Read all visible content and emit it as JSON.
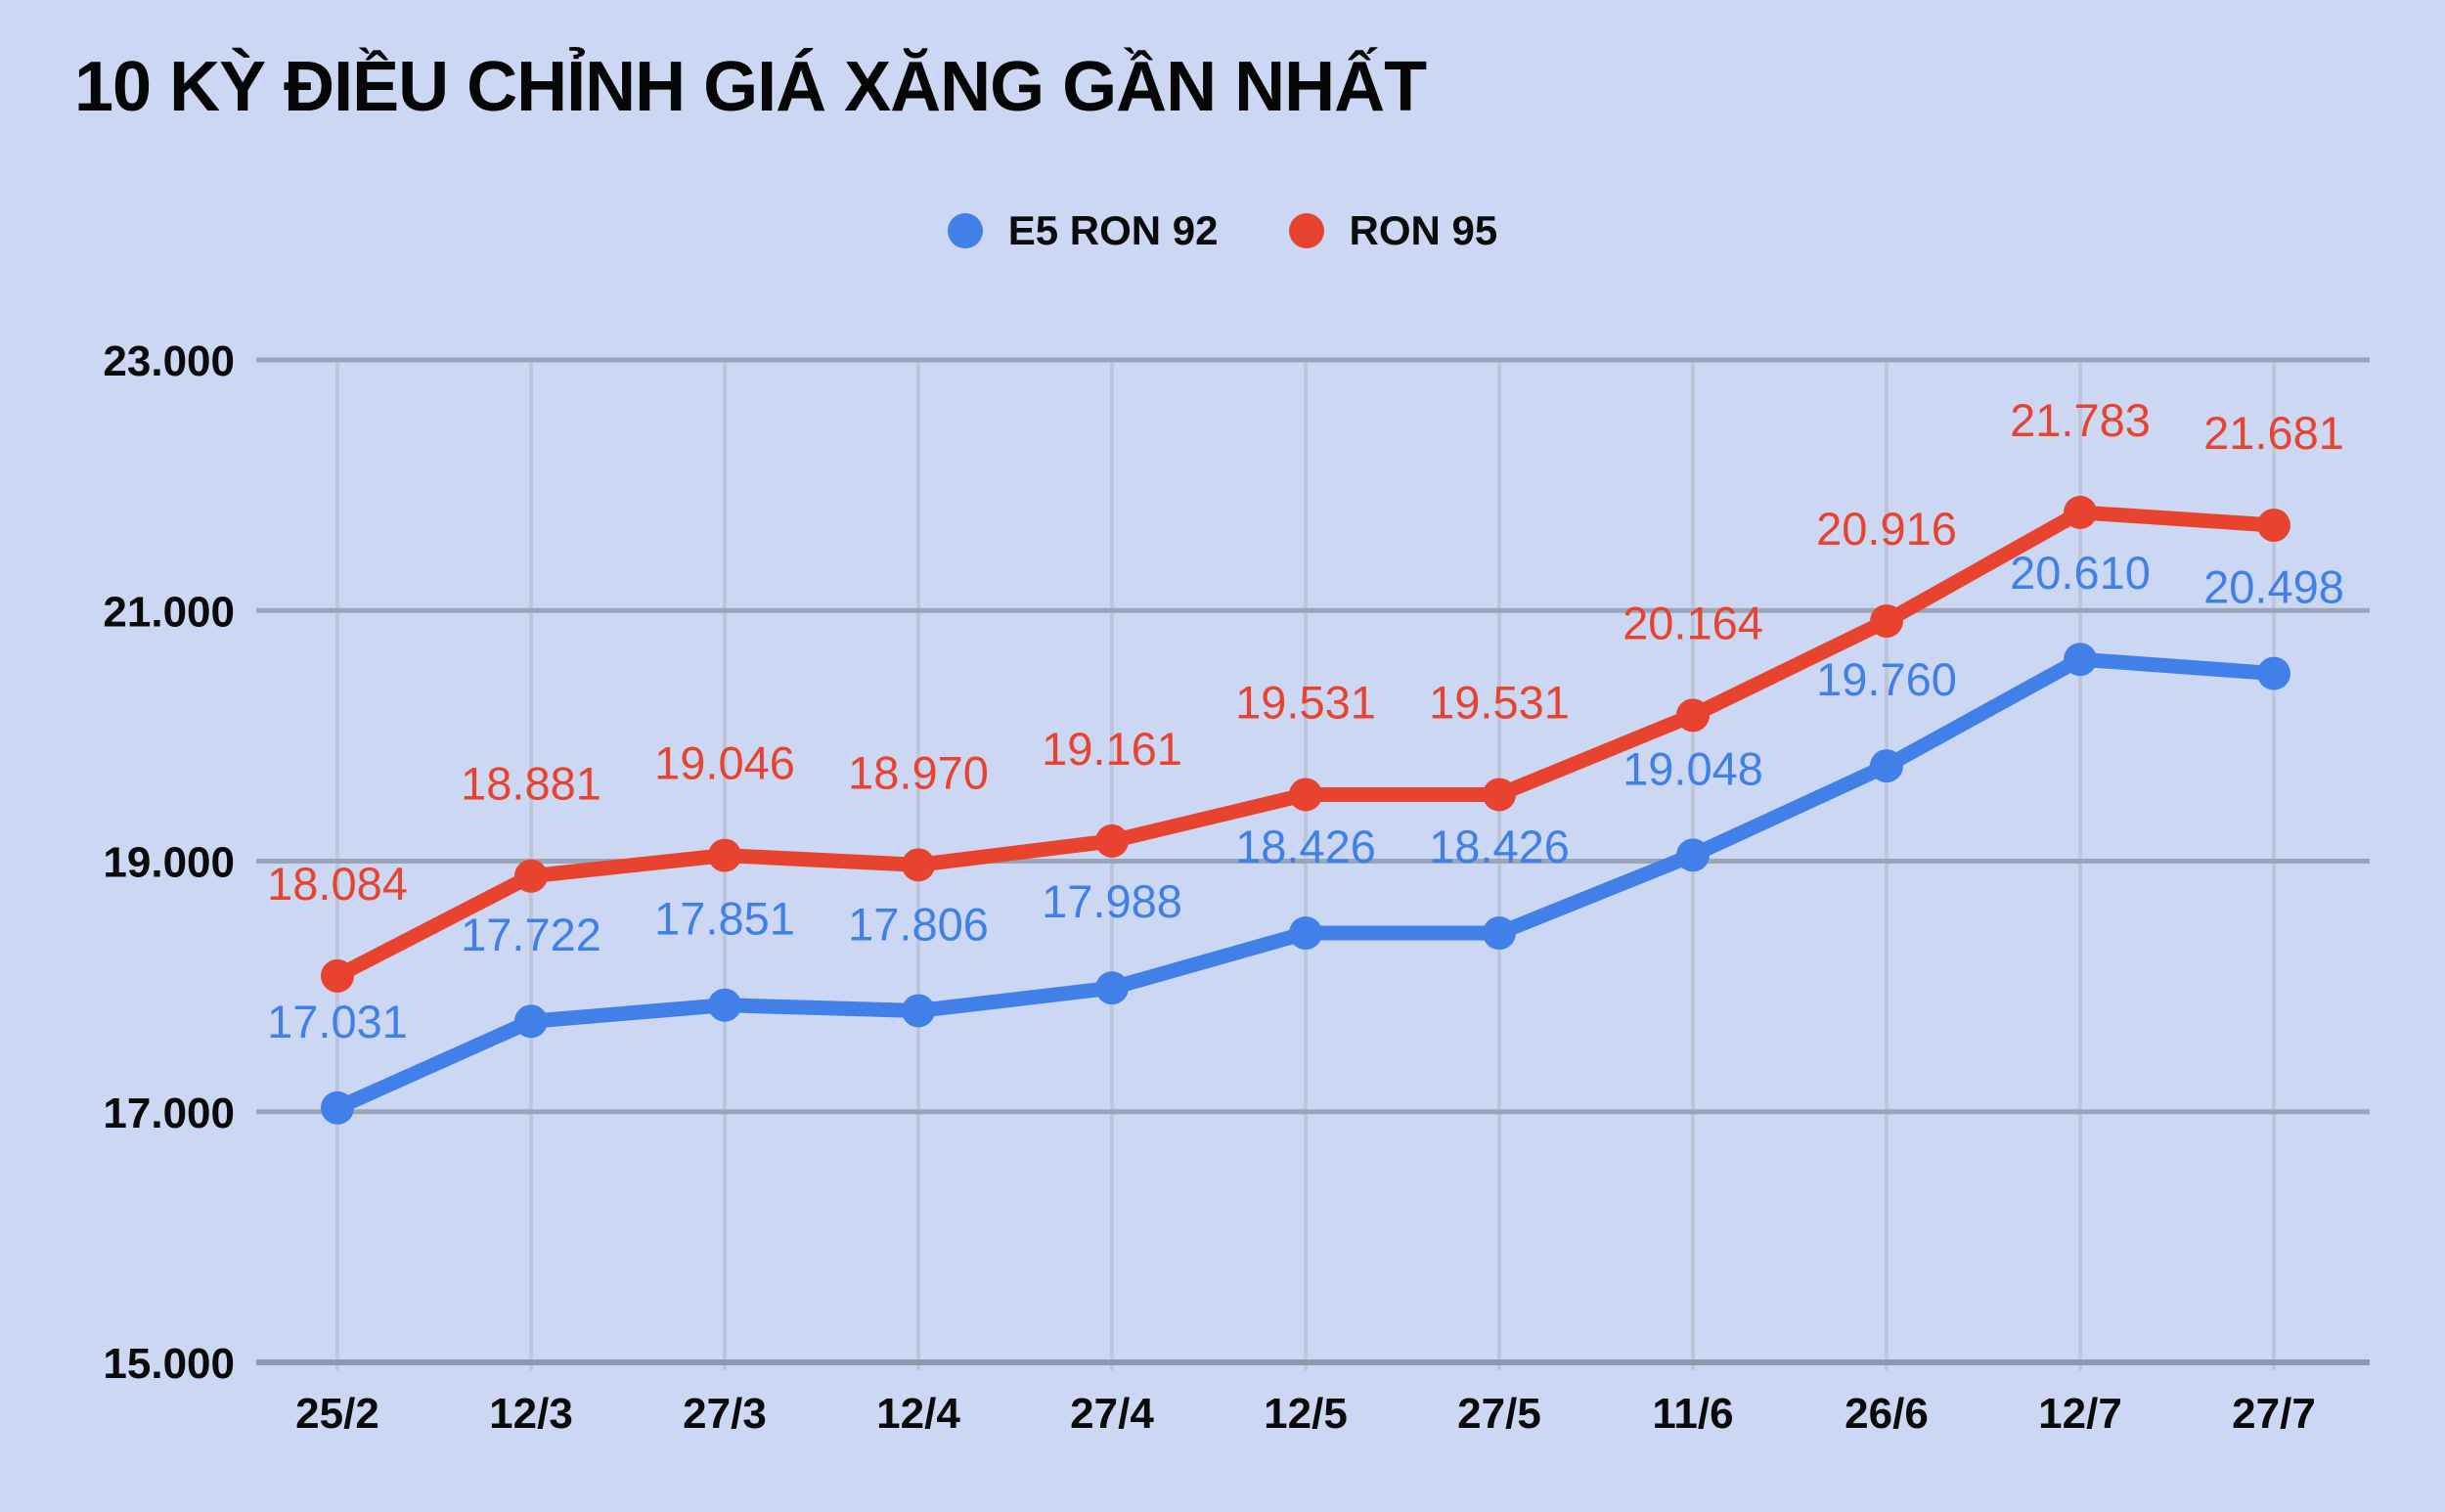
{
  "title": "10 KỲ ĐIỀU CHỈNH GIÁ XĂNG GẦN NHẤT",
  "colors": {
    "background": "#ccd8f3",
    "blue": "#4080e8",
    "red": "#e8432e",
    "grid_horizontal": "#9aa5b8",
    "grid_vertical": "#bdc6d8",
    "axis_line": "#8e99ad",
    "text": "#0a0a0a"
  },
  "legend": [
    {
      "label": "E5 RON 92",
      "color_key": "blue"
    },
    {
      "label": "RON 95",
      "color_key": "red"
    }
  ],
  "chart_data": {
    "type": "line",
    "categories": [
      "25/2",
      "12/3",
      "27/3",
      "12/4",
      "27/4",
      "12/5",
      "27/5",
      "11/6",
      "26/6",
      "12/7",
      "27/7"
    ],
    "series": [
      {
        "name": "E5 RON 92",
        "key": "e5-ron-92",
        "color_key": "blue",
        "values": [
          17031,
          17722,
          17851,
          17806,
          17988,
          18426,
          18426,
          19048,
          19760,
          20610,
          20498
        ],
        "labels": [
          "17.031",
          "17.722",
          "17.851",
          "17.806",
          "17.988",
          "18.426",
          "18.426",
          "19.048",
          "19.760",
          "20.610",
          "20.498"
        ]
      },
      {
        "name": "RON 95",
        "key": "ron-95",
        "color_key": "red",
        "values": [
          18084,
          18881,
          19046,
          18970,
          19161,
          19531,
          19531,
          20164,
          20916,
          21783,
          21681
        ],
        "labels": [
          "18.084",
          "18.881",
          "19.046",
          "18.970",
          "19.161",
          "19.531",
          "19.531",
          "20.164",
          "20.916",
          "21.783",
          "21.681"
        ]
      }
    ],
    "ylim": [
      15000,
      23000
    ],
    "yticks": [
      {
        "value": 23000,
        "label": "23.000"
      },
      {
        "value": 21000,
        "label": "21.000"
      },
      {
        "value": 19000,
        "label": "19.000"
      },
      {
        "value": 17000,
        "label": "17.000"
      },
      {
        "value": 15000,
        "label": "15.000"
      }
    ],
    "grid": true,
    "legend_position": "top"
  }
}
